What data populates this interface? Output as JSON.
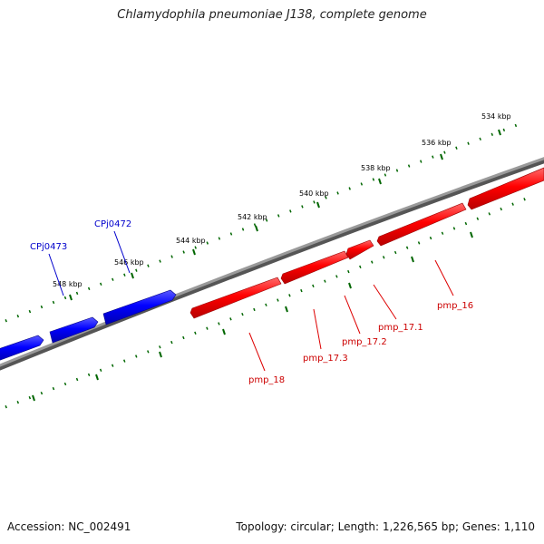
{
  "title": "Chlamydophila pneumoniae J138, complete genome",
  "footer": {
    "accession": "Accession: NC_002491",
    "summary": "Topology: circular; Length: 1,226,565 bp; Genes: 1,110"
  },
  "colors": {
    "forward_gene": "#ff0000",
    "reverse_gene": "#0000ff",
    "backbone": "#808080",
    "tick": "#006600",
    "forward_label": "#cc0000",
    "reverse_label": "#0000cc"
  },
  "ticks": [
    "534 kbp",
    "536 kbp",
    "538 kbp",
    "540 kbp",
    "542 kbp",
    "544 kbp",
    "546 kbp",
    "548 kbp"
  ],
  "genes_forward": [
    "pmp_16",
    "pmp_17.1",
    "pmp_17.2",
    "pmp_17.3",
    "pmp_18"
  ],
  "genes_reverse": [
    "CPj0472",
    "CPj0473"
  ]
}
